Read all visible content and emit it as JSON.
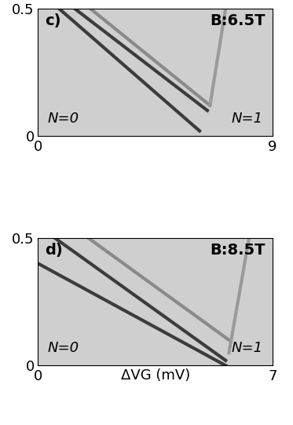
{
  "chart_data": [
    {
      "type": "line",
      "panel_label": "c)",
      "field_label": "B:6.5T",
      "annotations": [
        "N=0",
        "N=1"
      ],
      "xlim": [
        0,
        9
      ],
      "xticks": [
        0,
        9
      ],
      "ylim": [
        0,
        0.5
      ],
      "yticks": [
        0,
        0.5
      ],
      "series": [
        {
          "color": "#3c3c3c",
          "x": [
            0.8,
            6.2
          ],
          "values": [
            0.5,
            0.02
          ]
        },
        {
          "color": "#3c3c3c",
          "x": [
            1.4,
            6.5
          ],
          "values": [
            0.5,
            0.1
          ]
        },
        {
          "color": "#8a8a8a",
          "x": [
            2.0,
            6.6
          ],
          "values": [
            0.5,
            0.12
          ]
        },
        {
          "color": "#9a9a9a",
          "x": [
            6.6,
            7.2
          ],
          "values": [
            0.12,
            0.5
          ]
        }
      ]
    },
    {
      "type": "line",
      "panel_label": "d)",
      "field_label": "B:8.5T",
      "annotations": [
        "N=0",
        "N=1"
      ],
      "xlabel": "ΔVG (mV)",
      "xlim": [
        0,
        7
      ],
      "xticks": [
        0,
        7
      ],
      "ylim": [
        0,
        0.5
      ],
      "yticks": [
        0,
        0.5
      ],
      "series": [
        {
          "color": "#3c3c3c",
          "x": [
            0.0,
            5.6
          ],
          "values": [
            0.4,
            0.0
          ]
        },
        {
          "color": "#3c3c3c",
          "x": [
            0.5,
            5.6
          ],
          "values": [
            0.5,
            0.02
          ]
        },
        {
          "color": "#8a8a8a",
          "x": [
            1.5,
            5.7
          ],
          "values": [
            0.5,
            0.1
          ]
        },
        {
          "color": "#9a9a9a",
          "x": [
            5.7,
            6.3
          ],
          "values": [
            0.05,
            0.5
          ]
        }
      ]
    }
  ]
}
